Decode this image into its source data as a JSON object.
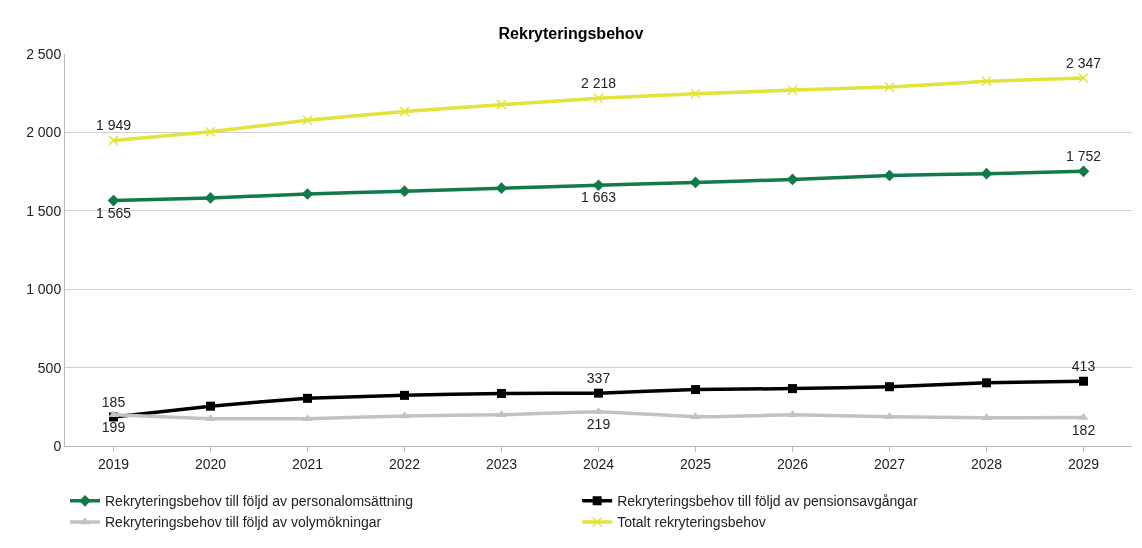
{
  "chart_data": {
    "type": "line",
    "title": "Rekryteringsbehov",
    "categories": [
      "2019",
      "2020",
      "2021",
      "2022",
      "2023",
      "2024",
      "2025",
      "2026",
      "2027",
      "2028",
      "2029"
    ],
    "ylim": [
      0,
      2500
    ],
    "yticks": [
      0,
      500,
      {
        "value": 1000,
        "label": "1 000"
      },
      {
        "value": 1500,
        "label": "1 500"
      },
      {
        "value": 2000,
        "label": "2 000"
      },
      {
        "value": 2500,
        "label": "2 500"
      }
    ],
    "grid": "y",
    "legend": "bottom",
    "series": [
      {
        "name": "Rekryteringsbehov till följd av personalomsättning",
        "color": "#127a4a",
        "marker": "diamond",
        "values": [
          1565,
          1582,
          1607,
          1625,
          1644,
          1663,
          1681,
          1700,
          1725,
          1737,
          1752
        ],
        "value_labels": [
          "1 565",
          null,
          null,
          null,
          null,
          "1 663",
          null,
          null,
          null,
          null,
          "1 752"
        ]
      },
      {
        "name": "Rekryteringsbehov till följd av pensionsavgångar",
        "color": "#000000",
        "marker": "square",
        "values": [
          185,
          254,
          304,
          323,
          335,
          337,
          360,
          366,
          378,
          403,
          413
        ],
        "value_labels": [
          "185",
          null,
          null,
          null,
          null,
          "337",
          null,
          null,
          null,
          null,
          "413"
        ]
      },
      {
        "name": "Rekryteringsbehov till följd av volymökningar",
        "color": "#bfc4c2",
        "marker": "triangle",
        "values": [
          199,
          174,
          174,
          192,
          199,
          219,
          186,
          199,
          186,
          180,
          182
        ],
        "value_labels": [
          "199",
          null,
          null,
          null,
          null,
          "219",
          null,
          null,
          null,
          null,
          "182"
        ]
      },
      {
        "name": "Totalt rekryteringsbehov",
        "color": "#e3e33c",
        "marker": "cross",
        "values": [
          1949,
          2004,
          2078,
          2134,
          2177,
          2218,
          2246,
          2270,
          2289,
          2326,
          2347
        ],
        "value_labels": [
          "1 949",
          null,
          null,
          null,
          null,
          "2 218",
          null,
          null,
          null,
          null,
          "2 347"
        ]
      }
    ]
  }
}
